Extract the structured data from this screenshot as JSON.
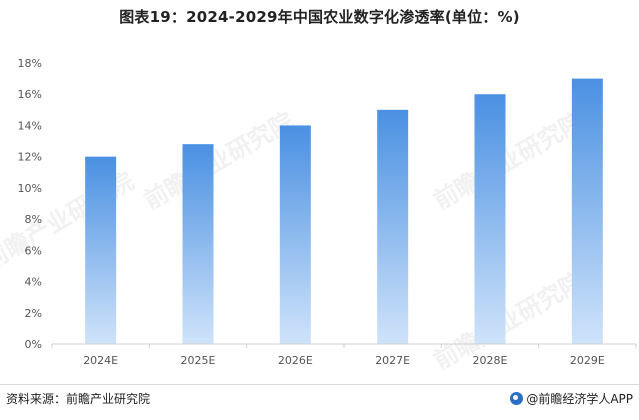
{
  "header": {
    "title": "图表19：2024-2029年中国农业数字化渗透率(单位：%)"
  },
  "footer": {
    "source": "资料来源：前瞻产业研究院",
    "brand": "@前瞻经济学人APP",
    "brand_icon": "qianzhan-logo-icon"
  },
  "watermark": {
    "text": "前瞻产业研究院"
  },
  "colors": {
    "bar_top": "#4a90e2",
    "bar_bottom": "#cfe3fa",
    "axis": "#d0d0d0",
    "tick_text": "#555555"
  },
  "chart_data": {
    "type": "bar",
    "title": "图表19：2024-2029年中国农业数字化渗透率(单位：%)",
    "categories": [
      "2024E",
      "2025E",
      "2026E",
      "2027E",
      "2028E",
      "2029E"
    ],
    "values": [
      12,
      12.8,
      14,
      15,
      16,
      17
    ],
    "ylim": [
      0,
      18
    ],
    "yticks": [
      0,
      2,
      4,
      6,
      8,
      10,
      12,
      14,
      16,
      18
    ],
    "ytick_labels": [
      "0%",
      "2%",
      "4%",
      "6%",
      "8%",
      "10%",
      "12%",
      "14%",
      "16%",
      "18%"
    ],
    "grid": false,
    "legend": "none"
  }
}
